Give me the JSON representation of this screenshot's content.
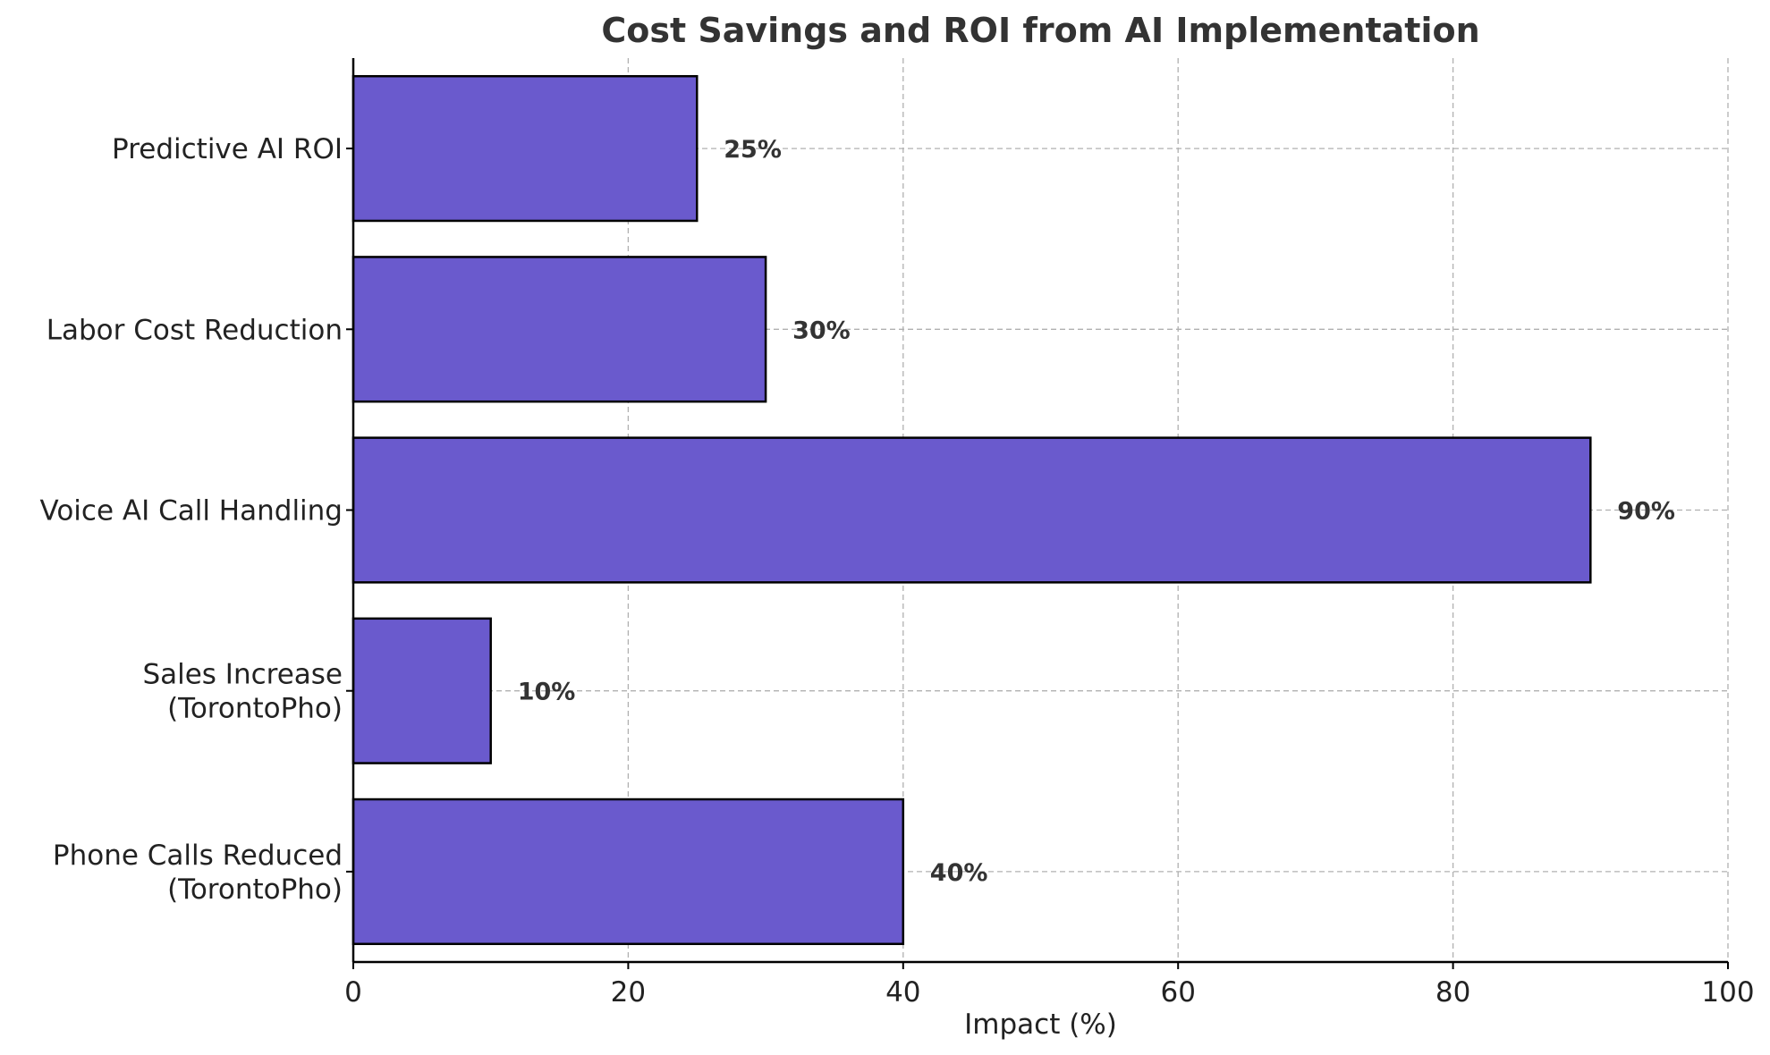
{
  "chart_data": {
    "type": "bar",
    "orientation": "horizontal",
    "title": "Cost Savings and ROI from AI Implementation",
    "xlabel": "Impact (%)",
    "ylabel": "",
    "xlim": [
      0,
      100
    ],
    "xticks": [
      0,
      20,
      40,
      60,
      80,
      100
    ],
    "grid": true,
    "categories": [
      [
        "Phone Calls Reduced",
        "(TorontoPho)"
      ],
      [
        "Sales Increase",
        "(TorontoPho)"
      ],
      [
        "Voice AI Call Handling"
      ],
      [
        "Labor Cost Reduction"
      ],
      [
        "Predictive AI ROI"
      ]
    ],
    "values": [
      40,
      10,
      90,
      30,
      25
    ],
    "value_labels": [
      "40%",
      "10%",
      "90%",
      "30%",
      "25%"
    ],
    "bar_color": "#6a5acd",
    "bar_edge_color": "#000000"
  }
}
